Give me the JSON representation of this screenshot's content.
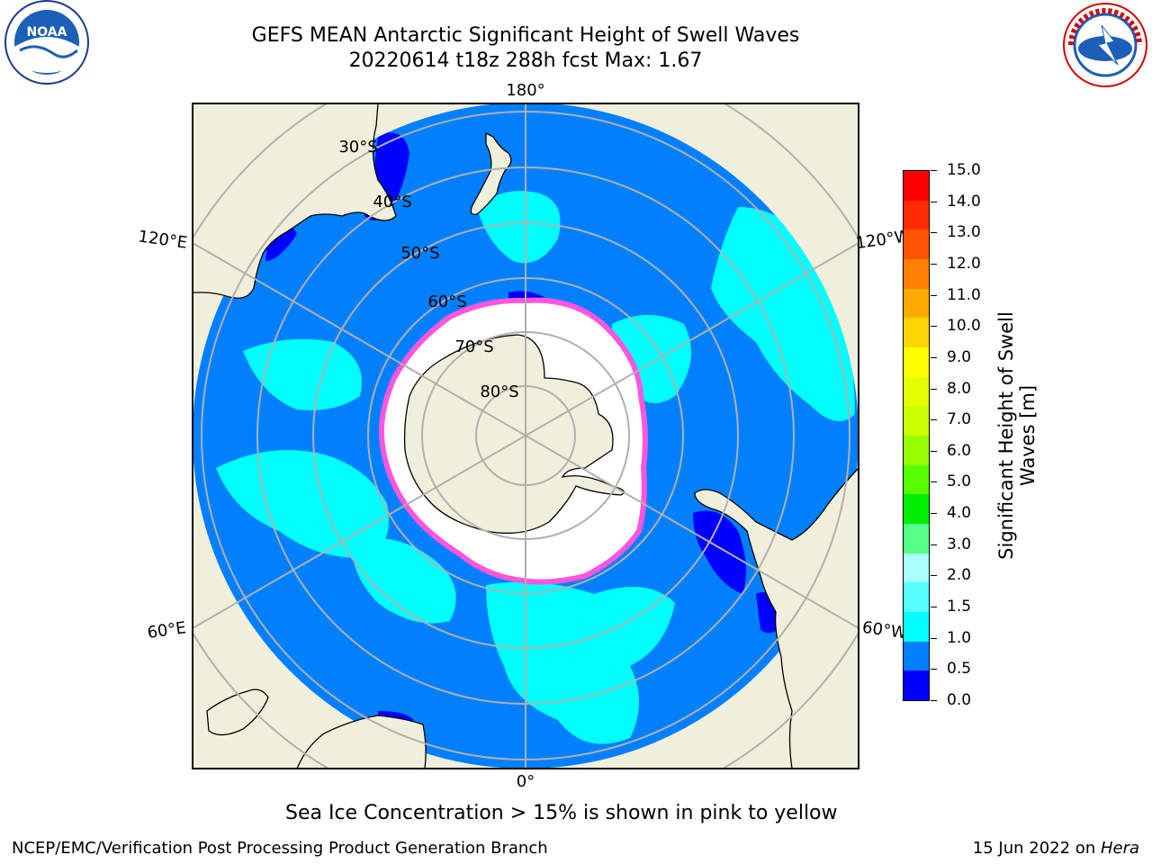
{
  "title": {
    "line1": "GEFS MEAN Antarctic Significant Height of Swell Waves",
    "line2": "20220614 t18z 288h fcst   Max: 1.67"
  },
  "map": {
    "projection": "south-polar-stereographic",
    "longitude_labels": {
      "top": "180°",
      "bottom": "0°",
      "upper_left": "120°E",
      "upper_right": "120°W",
      "lower_left": "60°E",
      "lower_right": "60°W"
    },
    "latitude_labels": [
      "30°S",
      "40°S",
      "50°S",
      "60°S",
      "70°S",
      "80°S"
    ],
    "colors": {
      "ocean": "#0080ff",
      "land": "#efefdc",
      "sea_ice": "#ffffff",
      "ice_edge": "#ff55dd",
      "swell_1_to_1_5": "#00ffff",
      "swell_0_to_0_5": "#0000ff",
      "gridline": "#b0b0b0"
    }
  },
  "colorbar": {
    "title_line1": "Significant Height of Swell",
    "title_line2": "Waves [m]",
    "ticks": [
      "15.0",
      "14.0",
      "13.0",
      "12.0",
      "11.0",
      "10.0",
      "9.0",
      "8.0",
      "7.0",
      "6.0",
      "5.0",
      "4.0",
      "3.0",
      "2.0",
      "1.5",
      "1.0",
      "0.5",
      "0.0"
    ],
    "colors_top_to_bottom": [
      "#ff0000",
      "#ff2a00",
      "#ff5500",
      "#ff8000",
      "#ffaa00",
      "#ffd400",
      "#ffff00",
      "#e6ff00",
      "#ccff00",
      "#99ff00",
      "#55ff00",
      "#00ee00",
      "#55ff88",
      "#aaffff",
      "#55ffff",
      "#00ffff",
      "#0080ff",
      "#0000ff"
    ]
  },
  "note": "Sea Ice Concentration > 15% is shown in pink to yellow",
  "footer": {
    "left": "NCEP/EMC/Verification Post Processing Product Generation Branch",
    "right_date": "15 Jun 2022 on ",
    "right_host": "Hera"
  }
}
